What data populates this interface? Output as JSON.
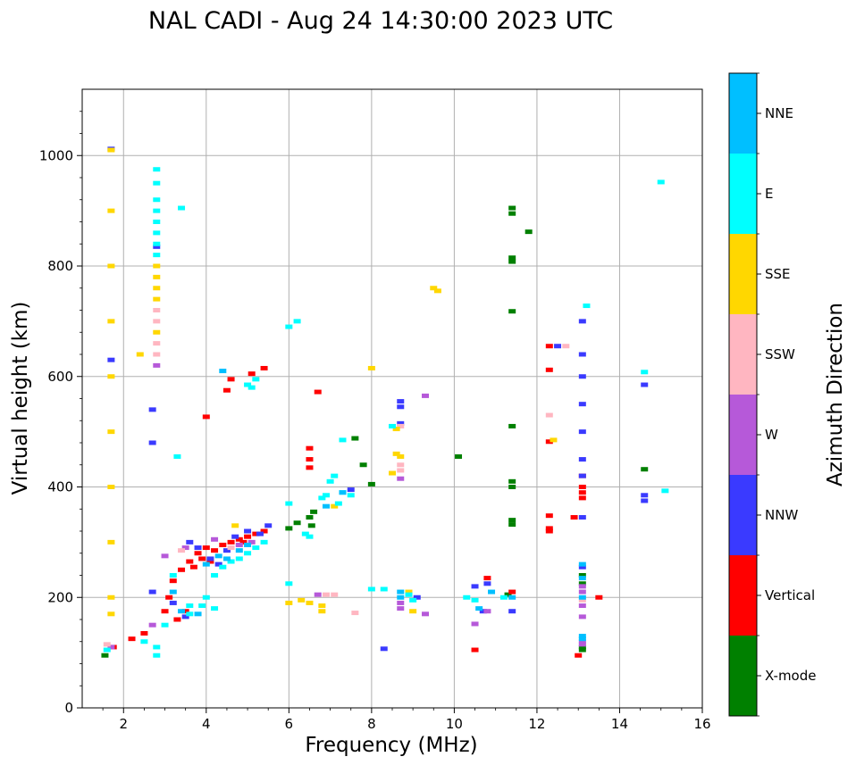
{
  "chart_data": {
    "type": "scatter",
    "title": "NAL CADI - Aug 24 14:30:00 2023 UTC",
    "xlabel": "Frequency (MHz)",
    "ylabel": "Virtual height (km)",
    "xlim": [
      1,
      16
    ],
    "ylim": [
      0,
      1120
    ],
    "xticks": [
      2,
      4,
      6,
      8,
      10,
      12,
      14,
      16
    ],
    "yticks": [
      0,
      200,
      400,
      600,
      800,
      1000
    ],
    "grid": true,
    "colorbar": {
      "label": "Azimuth Direction",
      "categories": [
        {
          "name": "X-mode",
          "color": "#008000"
        },
        {
          "name": "Vertical",
          "color": "#ff0000"
        },
        {
          "name": "NNW",
          "color": "#3a3aff"
        },
        {
          "name": "W",
          "color": "#b659d9"
        },
        {
          "name": "SSW",
          "color": "#ffb6c1"
        },
        {
          "name": "SSE",
          "color": "#ffd700"
        },
        {
          "name": "E",
          "color": "#00ffff"
        },
        {
          "name": "NNE",
          "color": "#00bfff"
        }
      ]
    },
    "series": [
      {
        "name": "X-mode",
        "points": [
          [
            1.55,
            95
          ],
          [
            6.0,
            325
          ],
          [
            6.2,
            335
          ],
          [
            6.5,
            345
          ],
          [
            6.55,
            330
          ],
          [
            6.6,
            355
          ],
          [
            11.4,
            905
          ],
          [
            11.4,
            895
          ],
          [
            11.4,
            815
          ],
          [
            11.4,
            808
          ],
          [
            11.4,
            718
          ],
          [
            11.4,
            510
          ],
          [
            11.4,
            410
          ],
          [
            11.4,
            400
          ],
          [
            11.4,
            340
          ],
          [
            11.4,
            332
          ],
          [
            11.8,
            862
          ],
          [
            11.3,
            205
          ],
          [
            13.1,
            240
          ],
          [
            13.1,
            225
          ],
          [
            13.1,
            105
          ],
          [
            13.1,
            110
          ],
          [
            14.6,
            432
          ],
          [
            7.8,
            440
          ],
          [
            7.6,
            488
          ],
          [
            10.1,
            455
          ],
          [
            8.0,
            405
          ]
        ]
      },
      {
        "name": "Vertical",
        "points": [
          [
            1.75,
            110
          ],
          [
            2.2,
            125
          ],
          [
            2.5,
            135
          ],
          [
            3.0,
            175
          ],
          [
            3.1,
            200
          ],
          [
            3.2,
            230
          ],
          [
            3.4,
            250
          ],
          [
            3.6,
            265
          ],
          [
            3.8,
            280
          ],
          [
            4.0,
            290
          ],
          [
            4.2,
            285
          ],
          [
            4.4,
            295
          ],
          [
            4.6,
            300
          ],
          [
            4.8,
            305
          ],
          [
            5.0,
            310
          ],
          [
            5.2,
            315
          ],
          [
            5.4,
            320
          ],
          [
            3.3,
            160
          ],
          [
            3.5,
            175
          ],
          [
            3.7,
            255
          ],
          [
            3.9,
            270
          ],
          [
            4.1,
            265
          ],
          [
            4.9,
            300
          ],
          [
            5.1,
            605
          ],
          [
            5.4,
            615
          ],
          [
            6.7,
            572
          ],
          [
            6.5,
            470
          ],
          [
            6.5,
            450
          ],
          [
            6.5,
            435
          ],
          [
            4.0,
            527
          ],
          [
            10.8,
            235
          ],
          [
            10.5,
            105
          ],
          [
            11.4,
            210
          ],
          [
            12.3,
            655
          ],
          [
            12.3,
            612
          ],
          [
            12.3,
            482
          ],
          [
            12.3,
            348
          ],
          [
            12.3,
            325
          ],
          [
            12.3,
            320
          ],
          [
            12.9,
            345
          ],
          [
            13.1,
            390
          ],
          [
            13.1,
            400
          ],
          [
            13.1,
            380
          ],
          [
            13.1,
            420
          ],
          [
            13.5,
            200
          ],
          [
            13.0,
            95
          ],
          [
            4.6,
            595
          ],
          [
            4.5,
            575
          ]
        ]
      },
      {
        "name": "NNW",
        "points": [
          [
            1.7,
            1012
          ],
          [
            1.7,
            630
          ],
          [
            2.7,
            210
          ],
          [
            2.8,
            835
          ],
          [
            2.7,
            540
          ],
          [
            2.7,
            480
          ],
          [
            3.2,
            190
          ],
          [
            3.5,
            165
          ],
          [
            3.6,
            300
          ],
          [
            3.8,
            290
          ],
          [
            4.1,
            270
          ],
          [
            4.3,
            260
          ],
          [
            4.5,
            285
          ],
          [
            4.7,
            310
          ],
          [
            5.0,
            320
          ],
          [
            5.3,
            315
          ],
          [
            5.5,
            330
          ],
          [
            7.5,
            395
          ],
          [
            8.7,
            555
          ],
          [
            8.7,
            545
          ],
          [
            8.7,
            515
          ],
          [
            10.5,
            220
          ],
          [
            10.7,
            175
          ],
          [
            10.8,
            225
          ],
          [
            11.4,
            175
          ],
          [
            12.5,
            655
          ],
          [
            13.1,
            700
          ],
          [
            13.1,
            640
          ],
          [
            13.1,
            600
          ],
          [
            13.1,
            550
          ],
          [
            13.1,
            500
          ],
          [
            13.1,
            450
          ],
          [
            13.1,
            420
          ],
          [
            13.1,
            345
          ],
          [
            13.1,
            255
          ],
          [
            14.6,
            585
          ],
          [
            14.6,
            385
          ],
          [
            14.6,
            375
          ],
          [
            8.3,
            107
          ],
          [
            9.1,
            200
          ]
        ]
      },
      {
        "name": "W",
        "points": [
          [
            1.7,
            110
          ],
          [
            2.7,
            150
          ],
          [
            2.8,
            620
          ],
          [
            3.0,
            275
          ],
          [
            3.5,
            290
          ],
          [
            4.2,
            305
          ],
          [
            4.8,
            295
          ],
          [
            5.1,
            300
          ],
          [
            8.7,
            415
          ],
          [
            8.7,
            190
          ],
          [
            8.7,
            180
          ],
          [
            9.3,
            170
          ],
          [
            9.3,
            565
          ],
          [
            10.5,
            152
          ],
          [
            10.8,
            175
          ],
          [
            13.1,
            220
          ],
          [
            13.1,
            210
          ],
          [
            13.1,
            185
          ],
          [
            13.1,
            165
          ],
          [
            13.1,
            120
          ],
          [
            13.1,
            115
          ],
          [
            6.7,
            205
          ]
        ]
      },
      {
        "name": "SSW",
        "points": [
          [
            1.6,
            115
          ],
          [
            2.8,
            660
          ],
          [
            2.8,
            700
          ],
          [
            2.8,
            720
          ],
          [
            2.8,
            640
          ],
          [
            3.4,
            285
          ],
          [
            4.6,
            290
          ],
          [
            6.9,
            205
          ],
          [
            7.1,
            205
          ],
          [
            7.6,
            172
          ],
          [
            8.7,
            510
          ],
          [
            8.7,
            440
          ],
          [
            8.7,
            430
          ],
          [
            12.3,
            530
          ],
          [
            12.7,
            655
          ],
          [
            13.1,
            195
          ]
        ]
      },
      {
        "name": "SSE",
        "points": [
          [
            1.7,
            1010
          ],
          [
            1.7,
            900
          ],
          [
            1.7,
            800
          ],
          [
            1.7,
            700
          ],
          [
            1.7,
            600
          ],
          [
            1.7,
            500
          ],
          [
            1.7,
            400
          ],
          [
            1.7,
            300
          ],
          [
            1.7,
            200
          ],
          [
            1.7,
            170
          ],
          [
            2.4,
            640
          ],
          [
            2.8,
            800
          ],
          [
            2.8,
            780
          ],
          [
            2.8,
            760
          ],
          [
            2.8,
            740
          ],
          [
            2.8,
            680
          ],
          [
            4.7,
            330
          ],
          [
            6.0,
            190
          ],
          [
            6.3,
            195
          ],
          [
            6.5,
            190
          ],
          [
            6.8,
            185
          ],
          [
            6.8,
            175
          ],
          [
            7.1,
            365
          ],
          [
            8.6,
            460
          ],
          [
            8.7,
            455
          ],
          [
            8.5,
            425
          ],
          [
            8.6,
            505
          ],
          [
            8.9,
            210
          ],
          [
            9.0,
            175
          ],
          [
            9.6,
            755
          ],
          [
            9.5,
            760
          ],
          [
            8.0,
            615
          ],
          [
            12.4,
            485
          ]
        ]
      },
      {
        "name": "E",
        "points": [
          [
            1.6,
            105
          ],
          [
            2.5,
            120
          ],
          [
            2.8,
            975
          ],
          [
            2.8,
            950
          ],
          [
            2.8,
            920
          ],
          [
            2.8,
            900
          ],
          [
            2.8,
            880
          ],
          [
            2.8,
            860
          ],
          [
            2.8,
            840
          ],
          [
            2.8,
            820
          ],
          [
            2.8,
            110
          ],
          [
            2.8,
            95
          ],
          [
            3.4,
            905
          ],
          [
            3.3,
            455
          ],
          [
            3.6,
            185
          ],
          [
            3.9,
            185
          ],
          [
            4.2,
            240
          ],
          [
            4.4,
            255
          ],
          [
            4.6,
            265
          ],
          [
            4.8,
            270
          ],
          [
            5.0,
            280
          ],
          [
            5.2,
            290
          ],
          [
            5.4,
            300
          ],
          [
            5.0,
            585
          ],
          [
            5.2,
            595
          ],
          [
            5.1,
            580
          ],
          [
            6.2,
            700
          ],
          [
            6.0,
            690
          ],
          [
            6.0,
            225
          ],
          [
            6.4,
            315
          ],
          [
            6.5,
            310
          ],
          [
            6.8,
            380
          ],
          [
            6.9,
            385
          ],
          [
            7.0,
            410
          ],
          [
            7.1,
            420
          ],
          [
            7.3,
            390
          ],
          [
            7.2,
            370
          ],
          [
            7.5,
            385
          ],
          [
            7.3,
            485
          ],
          [
            8.0,
            215
          ],
          [
            8.3,
            215
          ],
          [
            8.5,
            510
          ],
          [
            8.9,
            205
          ],
          [
            9.0,
            195
          ],
          [
            10.3,
            200
          ],
          [
            10.5,
            195
          ],
          [
            11.2,
            200
          ],
          [
            13.2,
            728
          ],
          [
            14.6,
            608
          ],
          [
            15.0,
            952
          ],
          [
            15.1,
            393
          ],
          [
            6.0,
            370
          ],
          [
            3.2,
            240
          ],
          [
            3.0,
            150
          ],
          [
            3.6,
            170
          ],
          [
            4.0,
            200
          ],
          [
            4.2,
            180
          ]
        ]
      },
      {
        "name": "NNE",
        "points": [
          [
            3.2,
            210
          ],
          [
            3.4,
            175
          ],
          [
            3.8,
            170
          ],
          [
            4.0,
            260
          ],
          [
            4.3,
            275
          ],
          [
            4.5,
            270
          ],
          [
            4.8,
            285
          ],
          [
            5.0,
            295
          ],
          [
            6.9,
            365
          ],
          [
            7.3,
            390
          ],
          [
            8.7,
            200
          ],
          [
            8.7,
            210
          ],
          [
            10.6,
            180
          ],
          [
            10.9,
            210
          ],
          [
            11.4,
            200
          ],
          [
            13.1,
            260
          ],
          [
            13.1,
            235
          ],
          [
            13.1,
            200
          ],
          [
            13.1,
            130
          ],
          [
            13.1,
            125
          ],
          [
            4.4,
            610
          ]
        ]
      }
    ]
  }
}
